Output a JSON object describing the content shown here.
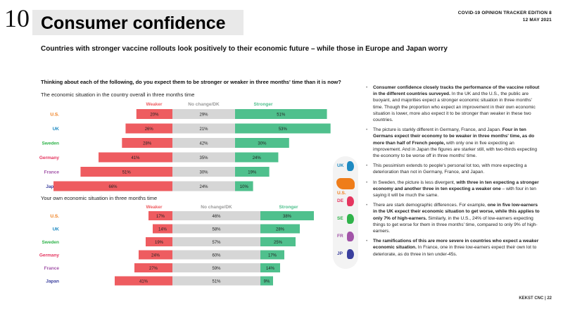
{
  "page": {
    "number": "10",
    "title": "Consumer confidence",
    "edition_line1": "COVID-19 OPINION TRACKER EDITION 8",
    "edition_line2": "12 MAY 2021",
    "subtitle": "Countries with stronger vaccine rollouts look positively to their economic future – while those in Europe and Japan worry",
    "question": "Thinking about each of the following, do you expect them to be stronger or weaker in three months' time than it is now?",
    "footer": "KEKST CNC | 22"
  },
  "colors": {
    "weaker": "#ee5c60",
    "nochange": "#d6d6d6",
    "stronger": "#4fc08d",
    "US": "#ef7d1a",
    "UK": "#1e8ac2",
    "Sweden": "#2fb34a",
    "Germany": "#e5355f",
    "France": "#a254a8",
    "Japan": "#3a3f9e"
  },
  "chart_data": [
    {
      "type": "bar",
      "title": "The economic situation in the country overall in three months time",
      "categories": [
        "U.S.",
        "UK",
        "Sweden",
        "Germany",
        "France",
        "Japan"
      ],
      "series": [
        {
          "name": "Weaker",
          "values": [
            20,
            26,
            28,
            41,
            51,
            66
          ]
        },
        {
          "name": "No change/DK",
          "values": [
            29,
            21,
            42,
            35,
            30,
            24
          ]
        },
        {
          "name": "Stronger",
          "values": [
            51,
            53,
            30,
            24,
            19,
            10
          ]
        }
      ]
    },
    {
      "type": "bar",
      "title": "Your own economic situation in three months time",
      "categories": [
        "U.S.",
        "UK",
        "Sweden",
        "Germany",
        "France",
        "Japan"
      ],
      "series": [
        {
          "name": "Weaker",
          "values": [
            17,
            14,
            19,
            24,
            27,
            41
          ]
        },
        {
          "name": "No change/DK",
          "values": [
            46,
            58,
            57,
            60,
            59,
            51
          ]
        },
        {
          "name": "Stronger",
          "values": [
            38,
            28,
            25,
            17,
            14,
            9
          ]
        }
      ]
    }
  ],
  "map_legend": [
    {
      "code": "UK",
      "icon": "uk-map-icon"
    },
    {
      "code": "U.S.",
      "icon": "us-map-icon"
    },
    {
      "code": "DE",
      "icon": "germany-map-icon"
    },
    {
      "code": "SE",
      "icon": "sweden-map-icon"
    },
    {
      "code": "FR",
      "icon": "france-map-icon"
    },
    {
      "code": "JP",
      "icon": "japan-map-icon"
    }
  ],
  "notes": [
    {
      "bold": "Consumer confidence closely tracks the performance of the vaccine rollout in the different countries surveyed.",
      "text": " In the UK and the U.S., the public are buoyant, and majorities expect a stronger economic situation in three months' time. Though the proportion who expect an improvement in their own economic situation is lower, more also expect it to be stronger than weaker in these two countries."
    },
    {
      "pre": "The picture is starkly different in Germany, France, and Japan. ",
      "bold": "Four in ten Germans expect their economy to be weaker in three months' time, as do more than half of French people,",
      "text": " with only one in five expecting an improvement. And in Japan the figures are starker still, with two-thirds expecting the economy to be worse off in three months' time."
    },
    {
      "pre": "This pessimism extends to people's personal lot too, with more expecting a deterioration than not in Germany, France, and Japan."
    },
    {
      "pre": "In Sweden, the picture is less divergent, ",
      "bold": "with three in ten expecting a stronger economy and another three in ten expecting a weaker one",
      "text": " – with four in ten saying it will be much the same."
    },
    {
      "pre": "There are stark demographic differences. For example, ",
      "bold": "one in five low-earners in the UK expect their economic situation to get worse, while this applies to only 7% of high-earners.",
      "text": " Similarly, in the U.S., 24% of low-earners expecting things to get worse for them in three months' time, compared to only 9% of high-earners."
    },
    {
      "bold": "The ramifications of this are more severe in countries who expect a weaker economic situation.",
      "text": " In France, one in three low-earners expect their own lot to deteriorate, as do three in ten under-45s."
    }
  ]
}
